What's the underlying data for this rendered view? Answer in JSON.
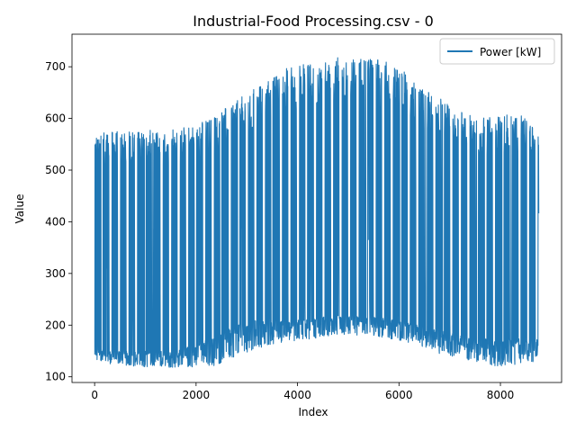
{
  "chart_data": {
    "type": "line",
    "title": "Industrial-Food Processing.csv - 0",
    "xlabel": "Index",
    "ylabel": "Value",
    "xlim": [
      -446,
      9206
    ],
    "ylim": [
      89,
      763
    ],
    "xticks": [
      0,
      2000,
      4000,
      6000,
      8000
    ],
    "yticks": [
      100,
      200,
      300,
      400,
      500,
      600,
      700
    ],
    "legend_position": "top-right",
    "n_points": 8760,
    "series": [
      {
        "name": "Power [kW]",
        "color": "#1f77b4",
        "envelope": {
          "x": [
            0,
            400,
            800,
            1200,
            1600,
            2000,
            2400,
            2800,
            3200,
            3600,
            4000,
            4400,
            4800,
            5200,
            5600,
            6000,
            6400,
            6800,
            7200,
            7600,
            8000,
            8400,
            8760
          ],
          "peak": [
            570,
            575,
            575,
            578,
            578,
            590,
            605,
            640,
            660,
            690,
            705,
            705,
            720,
            715,
            715,
            700,
            665,
            640,
            615,
            600,
            605,
            610,
            580
          ],
          "base": [
            125,
            125,
            120,
            118,
            118,
            118,
            122,
            140,
            155,
            165,
            170,
            175,
            180,
            180,
            178,
            170,
            160,
            145,
            135,
            125,
            120,
            125,
            130
          ],
          "mid_low": [
            155,
            150,
            150,
            150,
            150,
            165,
            180,
            200,
            210,
            210,
            210,
            215,
            220,
            220,
            215,
            210,
            200,
            190,
            180,
            175,
            170,
            175,
            175
          ],
          "mid_high": [
            420,
            420,
            420,
            420,
            420,
            430,
            440,
            460,
            470,
            480,
            490,
            495,
            500,
            500,
            500,
            495,
            480,
            465,
            450,
            440,
            440,
            445,
            420
          ]
        }
      }
    ]
  }
}
